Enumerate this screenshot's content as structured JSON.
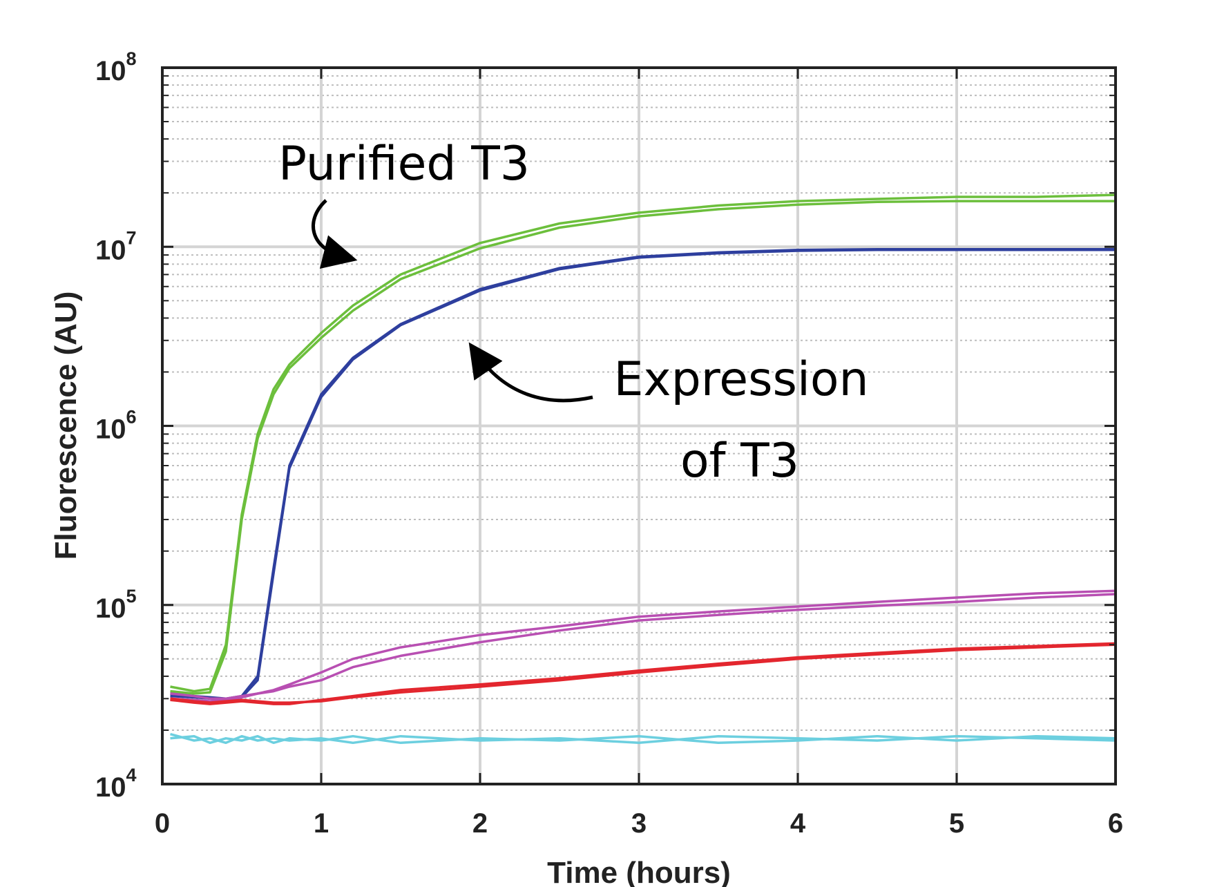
{
  "chart_data": {
    "type": "line",
    "title": "",
    "xlabel": "Time (hours)",
    "ylabel": "Fluorescence (AU)",
    "xlim": [
      0,
      6
    ],
    "ylim": [
      10000,
      100000000
    ],
    "yscale": "log",
    "grid": true,
    "minor_grid": true,
    "x_ticks": [
      "0",
      "1",
      "2",
      "3",
      "4",
      "5",
      "6"
    ],
    "y_ticks": [
      {
        "base": "10",
        "exp": "4"
      },
      {
        "base": "10",
        "exp": "5"
      },
      {
        "base": "10",
        "exp": "6"
      },
      {
        "base": "10",
        "exp": "7"
      },
      {
        "base": "10",
        "exp": "8"
      }
    ],
    "annotations": [
      {
        "lines": [
          "Purified T3"
        ]
      },
      {
        "lines": [
          "Expression",
          "of T3"
        ]
      }
    ],
    "x": [
      0.05,
      0.2,
      0.3,
      0.4,
      0.5,
      0.6,
      0.7,
      0.8,
      1.0,
      1.2,
      1.5,
      2.0,
      2.5,
      3.0,
      3.5,
      4.0,
      4.5,
      5.0,
      5.5,
      6.0
    ],
    "series": [
      {
        "color": "#6cbf3c",
        "values": [
          35000,
          33000,
          34000,
          60000,
          320000,
          900000,
          1600000,
          2200000,
          3300000,
          4700000,
          7000000,
          10500000,
          13500000,
          15500000,
          17000000,
          18000000,
          18500000,
          19000000,
          19000000,
          19500000
        ]
      },
      {
        "color": "#6cbf3c",
        "values": [
          33000,
          32000,
          32500,
          55000,
          300000,
          850000,
          1500000,
          2100000,
          3100000,
          4400000,
          6600000,
          9800000,
          12800000,
          14800000,
          16200000,
          17200000,
          17800000,
          18000000,
          18000000,
          18000000
        ]
      },
      {
        "color": "#2e3f9e",
        "values": [
          32000,
          31000,
          30500,
          30000,
          31000,
          40000,
          160000,
          600000,
          1500000,
          2400000,
          3700000,
          5800000,
          7600000,
          8800000,
          9300000,
          9600000,
          9700000,
          9700000,
          9700000,
          9700000
        ]
      },
      {
        "color": "#2e3f9e",
        "values": [
          31000,
          30500,
          30000,
          29500,
          30500,
          38000,
          150000,
          580000,
          1450000,
          2350000,
          3650000,
          5700000,
          7500000,
          8700000,
          9200000,
          9500000,
          9600000,
          9600000,
          9600000,
          9600000
        ]
      },
      {
        "color": "#b84fb2",
        "values": [
          32000,
          31000,
          30000,
          30000,
          31000,
          32000,
          33000,
          35000,
          38000,
          45000,
          52000,
          62000,
          72000,
          82000,
          88000,
          94000,
          99000,
          104000,
          110000,
          115000
        ]
      },
      {
        "color": "#b84fb2",
        "values": [
          30000,
          29500,
          29000,
          29500,
          30500,
          32000,
          33500,
          36000,
          42000,
          50000,
          58000,
          68000,
          76000,
          86000,
          92000,
          98000,
          104000,
          110000,
          116000,
          120000
        ]
      },
      {
        "color": "#e3262e",
        "values": [
          30000,
          29000,
          28500,
          29000,
          29500,
          29000,
          28500,
          28500,
          29000,
          30500,
          32500,
          35000,
          38000,
          42000,
          46000,
          50000,
          53000,
          56000,
          58000,
          60000
        ]
      },
      {
        "color": "#e3262e",
        "values": [
          29500,
          28500,
          28000,
          28500,
          29000,
          28500,
          28000,
          28000,
          29500,
          31000,
          33500,
          36000,
          39000,
          43000,
          47000,
          51000,
          54000,
          57000,
          59000,
          61000
        ]
      },
      {
        "color": "#6ccfdf",
        "values": [
          19000,
          17500,
          18000,
          17000,
          18500,
          17500,
          18000,
          17500,
          18000,
          17000,
          18500,
          17500,
          18000,
          17000,
          18500,
          18000,
          17500,
          18500,
          18000,
          17500
        ]
      },
      {
        "color": "#6ccfdf",
        "values": [
          18000,
          18500,
          17000,
          18000,
          17500,
          18500,
          17000,
          18000,
          17500,
          18500,
          17000,
          18000,
          17500,
          18500,
          17000,
          17500,
          18500,
          17500,
          18500,
          18000
        ]
      }
    ]
  }
}
